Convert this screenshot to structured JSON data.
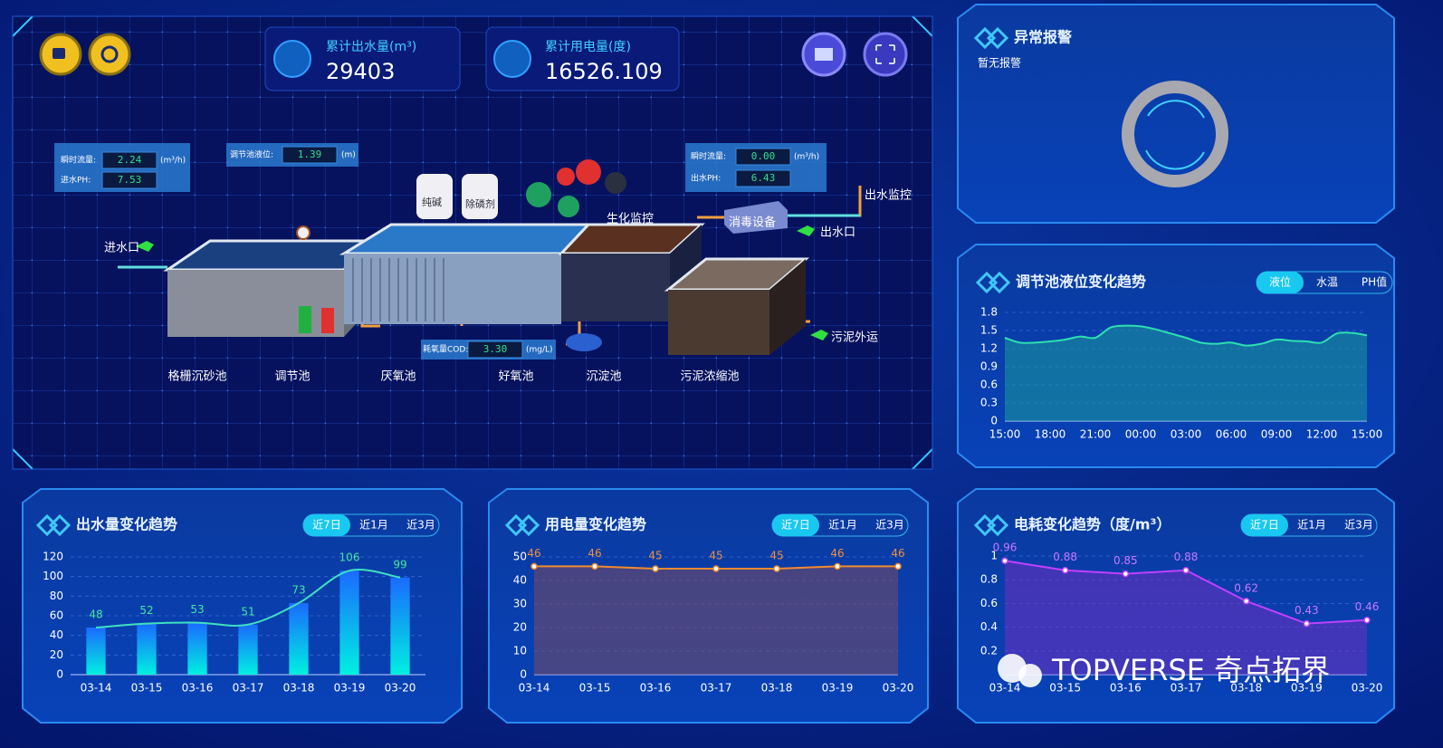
{
  "header": {
    "stats": [
      {
        "label": "累计出水量(m³)",
        "value": "29403"
      },
      {
        "label": "累计用电量(度)",
        "value": "16526.109"
      }
    ]
  },
  "process": {
    "readings": [
      {
        "label": "瞬时流量:",
        "value": "2.24",
        "unit": "(m³/h)"
      },
      {
        "label": "进水PH:",
        "value": "7.53"
      },
      {
        "label": "调节池液位:",
        "value": "1.39",
        "unit": "(m)"
      },
      {
        "label": "瞬时流量:",
        "value": "0.00",
        "unit": "(m³/h)"
      },
      {
        "label": "出水PH:",
        "value": "6.43"
      },
      {
        "label": "耗氧量COD:",
        "value": "3.30",
        "unit": "(mg/L)"
      }
    ],
    "labels": [
      "进水口",
      "纯碱",
      "除磷剂",
      "生化监控",
      "消毒设备",
      "出水口",
      "出水监控",
      "污泥外运"
    ],
    "pools": [
      "格栅沉砂池",
      "调节池",
      "厌氧池",
      "好氧池",
      "沉淀池",
      "污泥浓缩池"
    ]
  },
  "alarm": {
    "title": "异常报警",
    "status": "暂无报警"
  },
  "chart_data": [
    {
      "type": "line",
      "title": "调节池液位变化趋势",
      "tabs": [
        "液位",
        "水温",
        "PH值"
      ],
      "active_tab": 0,
      "categories": [
        "15:00",
        null,
        null,
        "18:00",
        null,
        null,
        "21:00",
        null,
        null,
        "00:00",
        null,
        null,
        "03:00",
        null,
        null,
        "06:00",
        null,
        null,
        "09:00",
        null,
        null,
        "12:00",
        null,
        null,
        "15:00"
      ],
      "values": [
        1.38,
        1.3,
        1.3,
        1.32,
        1.35,
        1.4,
        1.38,
        1.55,
        1.58,
        1.57,
        1.52,
        1.45,
        1.38,
        1.3,
        1.28,
        1.3,
        1.25,
        1.28,
        1.35,
        1.33,
        1.32,
        1.3,
        1.45,
        1.46,
        1.42
      ],
      "color": "#2de0b0",
      "area_color": "#1a9a9a",
      "smooth": true,
      "markers": false,
      "data_labels": false,
      "ylim": [
        0,
        1.8
      ],
      "yticks": [
        0,
        0.3,
        0.6,
        0.9,
        1.2,
        1.5,
        1.8
      ],
      "grid": true
    },
    {
      "type": "bar",
      "title": "出水量变化趋势",
      "tabs": [
        "近7日",
        "近1月",
        "近3月"
      ],
      "active_tab": 0,
      "categories": [
        "03-14",
        "03-15",
        "03-16",
        "03-17",
        "03-18",
        "03-19",
        "03-20"
      ],
      "values": [
        48,
        52,
        53,
        51,
        73,
        106,
        99
      ],
      "color": "#3fe0c0",
      "label_color": "#40e8a0",
      "smooth": true,
      "line_overlay": true,
      "data_labels": true,
      "ylim": [
        0,
        120
      ],
      "yticks": [
        0,
        20,
        40,
        60,
        80,
        100,
        120
      ],
      "grid": true
    },
    {
      "type": "line",
      "title": "用电量变化趋势",
      "tabs": [
        "近7日",
        "近1月",
        "近3月"
      ],
      "active_tab": 0,
      "categories": [
        "03-14",
        "03-15",
        "03-16",
        "03-17",
        "03-18",
        "03-19",
        "03-20"
      ],
      "values": [
        46,
        46,
        45,
        45,
        45,
        46,
        46
      ],
      "color": "#f08a30",
      "area_color": "#7a4a60",
      "label_color": "#f09040",
      "smooth": false,
      "markers": true,
      "data_labels": true,
      "ylim": [
        0,
        50
      ],
      "yticks": [
        0,
        10,
        20,
        30,
        40,
        50
      ],
      "grid": true
    },
    {
      "type": "line",
      "title": "电耗变化趋势（度/m³）",
      "tabs": [
        "近7日",
        "近1月",
        "近3月"
      ],
      "active_tab": 0,
      "categories": [
        "03-14",
        "03-15",
        "03-16",
        "03-17",
        "03-18",
        "03-19",
        "03-20"
      ],
      "values": [
        0.96,
        0.88,
        0.85,
        0.88,
        0.62,
        0.43,
        0.46
      ],
      "color": "#c040ff",
      "area_color": "#7030c0",
      "label_color": "#c878ff",
      "smooth": false,
      "markers": true,
      "data_labels": true,
      "ylim": [
        0,
        1
      ],
      "yticks": [
        0.2,
        0.4,
        0.6,
        0.8,
        1
      ],
      "grid": true
    }
  ],
  "watermark": "TOPVERSE 奇点拓界"
}
